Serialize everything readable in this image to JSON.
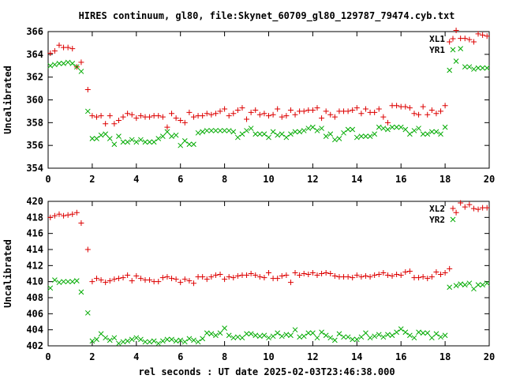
{
  "chart_data": {
    "type": "scatter",
    "title": "HIRES continuum, gl80, file:Skynet_60709_gl80_129787_79474.cyb.txt",
    "xlabel": "rel seconds : UT date 2025-02-03T23:46:38.000",
    "colors": {
      "red": "#dd0000",
      "green": "#00aa00"
    },
    "panels": [
      {
        "ylabel": "Uncalibrated",
        "xlim": [
          0,
          20
        ],
        "ylim": [
          354,
          366
        ],
        "xticks": [
          "0",
          "2",
          "4",
          "6",
          "8",
          "10",
          "12",
          "14",
          "16",
          "18",
          "20"
        ],
        "yticks": [
          "354",
          "356",
          "358",
          "360",
          "362",
          "364",
          "366"
        ],
        "grid": false,
        "legend_position": "top-right",
        "series": [
          {
            "name": "XL1",
            "marker": "plus",
            "color": "#dd0000",
            "x": [
              0.1,
              0.3,
              0.5,
              0.7,
              0.9,
              1.1,
              1.3,
              1.5,
              1.8,
              2.0,
              2.2,
              2.4,
              2.6,
              2.8,
              3.0,
              3.2,
              3.4,
              3.6,
              3.8,
              4.0,
              4.2,
              4.4,
              4.6,
              4.8,
              5.0,
              5.2,
              5.4,
              5.6,
              5.8,
              6.0,
              6.2,
              6.4,
              6.6,
              6.8,
              7.0,
              7.2,
              7.4,
              7.6,
              7.8,
              8.0,
              8.2,
              8.4,
              8.6,
              8.8,
              9.0,
              9.2,
              9.4,
              9.6,
              9.8,
              10.0,
              10.2,
              10.4,
              10.6,
              10.8,
              11.0,
              11.2,
              11.4,
              11.6,
              11.8,
              12.0,
              12.2,
              12.4,
              12.6,
              12.8,
              13.0,
              13.2,
              13.4,
              13.6,
              13.8,
              14.0,
              14.2,
              14.4,
              14.6,
              14.8,
              15.0,
              15.2,
              15.4,
              15.6,
              15.8,
              16.0,
              16.2,
              16.4,
              16.6,
              16.8,
              17.0,
              17.2,
              17.4,
              17.6,
              17.8,
              18.0,
              18.2,
              18.5,
              18.7,
              18.9,
              19.1,
              19.3,
              19.5,
              19.7,
              19.9
            ],
            "y": [
              364.1,
              364.3,
              364.8,
              364.6,
              364.6,
              364.5,
              362.9,
              363.3,
              360.9,
              358.6,
              358.5,
              358.6,
              357.9,
              358.6,
              357.9,
              358.2,
              358.5,
              358.8,
              358.7,
              358.4,
              358.6,
              358.5,
              358.5,
              358.6,
              358.6,
              358.5,
              357.6,
              358.8,
              358.4,
              358.2,
              358.0,
              358.9,
              358.5,
              358.6,
              358.6,
              358.8,
              358.7,
              358.8,
              359.0,
              359.2,
              358.6,
              358.8,
              359.1,
              359.3,
              358.3,
              358.9,
              359.1,
              358.7,
              358.8,
              358.6,
              358.7,
              359.2,
              358.5,
              358.6,
              359.1,
              358.7,
              359.0,
              359.0,
              359.1,
              359.1,
              359.3,
              358.4,
              359.0,
              358.7,
              358.5,
              359.0,
              359.0,
              359.0,
              359.1,
              359.3,
              358.8,
              359.2,
              358.9,
              358.9,
              359.2,
              358.5,
              358.0,
              359.5,
              359.5,
              359.4,
              359.4,
              359.3,
              358.8,
              358.7,
              359.4,
              358.7,
              359.1,
              358.8,
              359.0,
              359.5,
              365.1,
              366.1,
              365.4,
              365.4,
              365.3,
              365.1,
              365.8,
              365.7,
              365.6
            ]
          },
          {
            "name": "YR1",
            "marker": "cross",
            "color": "#00aa00",
            "x": [
              0.1,
              0.3,
              0.5,
              0.7,
              0.9,
              1.1,
              1.3,
              1.5,
              1.8,
              2.0,
              2.2,
              2.4,
              2.6,
              2.8,
              3.0,
              3.2,
              3.4,
              3.6,
              3.8,
              4.0,
              4.2,
              4.4,
              4.6,
              4.8,
              5.0,
              5.2,
              5.4,
              5.6,
              5.8,
              6.0,
              6.2,
              6.4,
              6.6,
              6.8,
              7.0,
              7.2,
              7.4,
              7.6,
              7.8,
              8.0,
              8.2,
              8.4,
              8.6,
              8.8,
              9.0,
              9.2,
              9.4,
              9.6,
              9.8,
              10.0,
              10.2,
              10.4,
              10.6,
              10.8,
              11.0,
              11.2,
              11.4,
              11.6,
              11.8,
              12.0,
              12.2,
              12.4,
              12.6,
              12.8,
              13.0,
              13.2,
              13.4,
              13.6,
              13.8,
              14.0,
              14.2,
              14.4,
              14.6,
              14.8,
              15.0,
              15.2,
              15.4,
              15.6,
              15.8,
              16.0,
              16.2,
              16.4,
              16.6,
              16.8,
              17.0,
              17.2,
              17.4,
              17.6,
              17.8,
              18.0,
              18.2,
              18.5,
              18.7,
              18.9,
              19.1,
              19.3,
              19.5,
              19.7,
              19.9
            ],
            "y": [
              363.0,
              363.1,
              363.2,
              363.2,
              363.3,
              363.2,
              362.9,
              362.5,
              359.0,
              356.6,
              356.6,
              356.9,
              357.0,
              356.6,
              356.1,
              356.8,
              356.3,
              356.3,
              356.5,
              356.3,
              356.5,
              356.3,
              356.3,
              356.3,
              356.6,
              356.8,
              357.2,
              356.8,
              356.9,
              356.0,
              356.4,
              356.1,
              356.1,
              357.1,
              357.2,
              357.3,
              357.3,
              357.3,
              357.3,
              357.3,
              357.3,
              357.2,
              356.7,
              357.0,
              357.3,
              357.5,
              357.0,
              357.0,
              357.0,
              356.7,
              357.2,
              356.9,
              357.0,
              356.7,
              357.0,
              357.2,
              357.2,
              357.3,
              357.5,
              357.6,
              357.3,
              357.5,
              356.8,
              357.0,
              356.5,
              356.6,
              357.1,
              357.4,
              357.4,
              356.7,
              356.8,
              356.8,
              356.8,
              357.0,
              357.6,
              357.5,
              357.4,
              357.6,
              357.6,
              357.6,
              357.4,
              357.0,
              357.3,
              357.5,
              357.0,
              357.0,
              357.2,
              357.2,
              357.0,
              357.6,
              362.6,
              363.4,
              364.5,
              362.9,
              362.9,
              362.7,
              362.8,
              362.8,
              362.8
            ]
          }
        ]
      },
      {
        "ylabel": "Uncalibrated",
        "xlim": [
          0,
          20
        ],
        "ylim": [
          402,
          420
        ],
        "xticks": [
          "0",
          "2",
          "4",
          "6",
          "8",
          "10",
          "12",
          "14",
          "16",
          "18",
          "20"
        ],
        "yticks": [
          "402",
          "404",
          "406",
          "408",
          "410",
          "412",
          "414",
          "416",
          "418",
          "420"
        ],
        "grid": false,
        "legend_position": "top-right",
        "series": [
          {
            "name": "XL2",
            "marker": "plus",
            "color": "#dd0000",
            "x": [
              0.1,
              0.3,
              0.5,
              0.7,
              0.9,
              1.1,
              1.3,
              1.5,
              1.8,
              2.0,
              2.2,
              2.4,
              2.6,
              2.8,
              3.0,
              3.2,
              3.4,
              3.6,
              3.8,
              4.0,
              4.2,
              4.4,
              4.6,
              4.8,
              5.0,
              5.2,
              5.4,
              5.6,
              5.8,
              6.0,
              6.2,
              6.4,
              6.6,
              6.8,
              7.0,
              7.2,
              7.4,
              7.6,
              7.8,
              8.0,
              8.2,
              8.4,
              8.6,
              8.8,
              9.0,
              9.2,
              9.4,
              9.6,
              9.8,
              10.0,
              10.2,
              10.4,
              10.6,
              10.8,
              11.0,
              11.2,
              11.4,
              11.6,
              11.8,
              12.0,
              12.2,
              12.4,
              12.6,
              12.8,
              13.0,
              13.2,
              13.4,
              13.6,
              13.8,
              14.0,
              14.2,
              14.4,
              14.6,
              14.8,
              15.0,
              15.2,
              15.4,
              15.6,
              15.8,
              16.0,
              16.2,
              16.4,
              16.6,
              16.8,
              17.0,
              17.2,
              17.4,
              17.6,
              17.8,
              18.0,
              18.2,
              18.5,
              18.7,
              18.9,
              19.1,
              19.3,
              19.5,
              19.7,
              19.9
            ],
            "y": [
              418.0,
              418.2,
              418.4,
              418.2,
              418.3,
              418.4,
              418.6,
              417.3,
              414.0,
              410.0,
              410.4,
              410.2,
              409.9,
              410.1,
              410.3,
              410.4,
              410.5,
              410.8,
              410.1,
              410.7,
              410.4,
              410.2,
              410.2,
              410.0,
              410.0,
              410.5,
              410.6,
              410.4,
              410.3,
              409.9,
              410.3,
              410.1,
              409.8,
              410.6,
              410.6,
              410.3,
              410.6,
              410.8,
              410.9,
              410.3,
              410.6,
              410.5,
              410.7,
              410.8,
              410.8,
              411.0,
              410.8,
              410.6,
              410.5,
              411.1,
              410.4,
              410.4,
              410.7,
              410.8,
              409.9,
              411.1,
              410.8,
              411.0,
              410.9,
              411.1,
              410.8,
              411.0,
              411.1,
              411.0,
              410.7,
              410.6,
              410.6,
              410.6,
              410.5,
              410.8,
              410.6,
              410.7,
              410.6,
              410.8,
              410.9,
              411.1,
              410.8,
              410.7,
              410.9,
              410.8,
              411.2,
              411.3,
              410.5,
              410.5,
              410.6,
              410.4,
              410.6,
              411.2,
              410.9,
              411.1,
              411.6,
              418.6,
              419.8,
              419.3,
              419.6,
              419.1,
              419.0,
              419.2,
              419.2
            ]
          },
          {
            "name": "YR2",
            "marker": "cross",
            "color": "#00aa00",
            "x": [
              0.1,
              0.3,
              0.5,
              0.7,
              0.9,
              1.1,
              1.3,
              1.5,
              1.8,
              2.0,
              2.2,
              2.4,
              2.6,
              2.8,
              3.0,
              3.2,
              3.4,
              3.6,
              3.8,
              4.0,
              4.2,
              4.4,
              4.6,
              4.8,
              5.0,
              5.2,
              5.4,
              5.6,
              5.8,
              6.0,
              6.2,
              6.4,
              6.6,
              6.8,
              7.0,
              7.2,
              7.4,
              7.6,
              7.8,
              8.0,
              8.2,
              8.4,
              8.6,
              8.8,
              9.0,
              9.2,
              9.4,
              9.6,
              9.8,
              10.0,
              10.2,
              10.4,
              10.6,
              10.8,
              11.0,
              11.2,
              11.4,
              11.6,
              11.8,
              12.0,
              12.2,
              12.4,
              12.6,
              12.8,
              13.0,
              13.2,
              13.4,
              13.6,
              13.8,
              14.0,
              14.2,
              14.4,
              14.6,
              14.8,
              15.0,
              15.2,
              15.4,
              15.6,
              15.8,
              16.0,
              16.2,
              16.4,
              16.6,
              16.8,
              17.0,
              17.2,
              17.4,
              17.6,
              17.8,
              18.0,
              18.2,
              18.5,
              18.7,
              18.9,
              19.1,
              19.3,
              19.5,
              19.7,
              19.9
            ],
            "y": [
              409.2,
              410.2,
              409.9,
              410.0,
              410.0,
              410.0,
              410.1,
              408.7,
              406.1,
              402.6,
              402.8,
              403.5,
              403.0,
              402.7,
              403.0,
              402.3,
              402.5,
              402.6,
              402.8,
              403.0,
              402.8,
              402.5,
              402.5,
              402.6,
              402.3,
              402.6,
              402.8,
              402.8,
              402.6,
              402.7,
              402.5,
              402.9,
              402.7,
              402.5,
              402.9,
              403.6,
              403.5,
              403.3,
              403.6,
              404.2,
              403.3,
              403.0,
              403.1,
              403.0,
              403.5,
              403.5,
              403.3,
              403.2,
              403.3,
              403.0,
              403.2,
              403.6,
              403.2,
              403.4,
              403.3,
              404.0,
              403.1,
              403.2,
              403.6,
              403.6,
              403.0,
              403.7,
              403.3,
              403.0,
              402.7,
              403.5,
              403.1,
              403.1,
              402.8,
              402.8,
              403.1,
              403.6,
              403.0,
              403.2,
              403.4,
              403.1,
              403.4,
              403.3,
              403.7,
              404.1,
              403.7,
              403.3,
              403.0,
              403.7,
              403.6,
              403.6,
              403.0,
              403.5,
              403.1,
              403.3,
              409.3,
              409.5,
              409.7,
              409.6,
              409.8,
              409.1,
              409.6,
              409.6,
              409.8
            ]
          }
        ]
      }
    ]
  }
}
